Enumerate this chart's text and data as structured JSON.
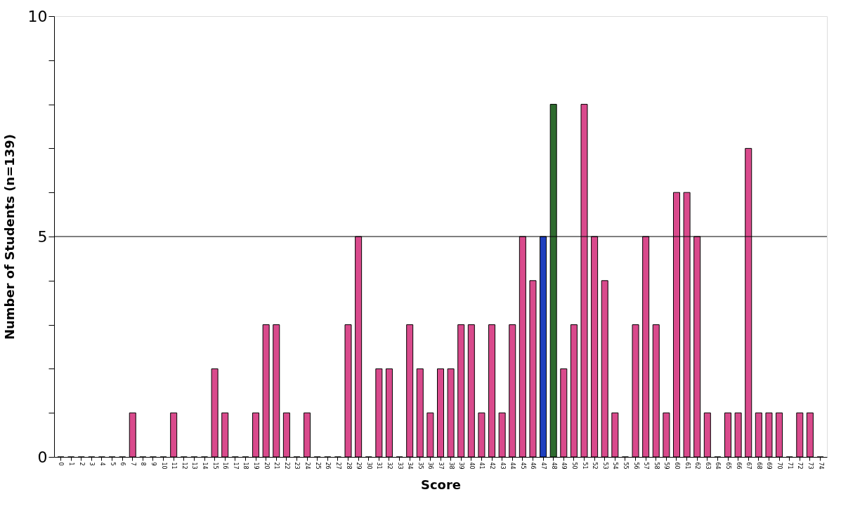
{
  "chart_data": {
    "type": "bar",
    "xlabel": "Score",
    "ylabel": "Number of Students (n=139)",
    "categories": [
      "0",
      "1",
      "2",
      "3",
      "4",
      "5",
      "6",
      "7",
      "8",
      "9",
      "10",
      "11",
      "12",
      "13",
      "14",
      "15",
      "16",
      "17",
      "18",
      "19",
      "20",
      "21",
      "22",
      "23",
      "24",
      "25",
      "26",
      "27",
      "28",
      "29",
      "30",
      "31",
      "32",
      "33",
      "34",
      "35",
      "36",
      "37",
      "38",
      "39",
      "40",
      "41",
      "42",
      "43",
      "44",
      "45",
      "46",
      "47",
      "48",
      "49",
      "50",
      "51",
      "52",
      "53",
      "54",
      "55",
      "56",
      "57",
      "58",
      "59",
      "60",
      "61",
      "62",
      "63",
      "64",
      "65",
      "66",
      "67",
      "68",
      "69",
      "70",
      "71",
      "72",
      "73",
      "74"
    ],
    "values": [
      0,
      0,
      0,
      0,
      0,
      0,
      0,
      1,
      0,
      0,
      0,
      1,
      0,
      0,
      0,
      2,
      1,
      0,
      0,
      1,
      3,
      3,
      1,
      0,
      1,
      0,
      0,
      0,
      3,
      5,
      0,
      2,
      2,
      0,
      3,
      2,
      1,
      2,
      2,
      3,
      3,
      1,
      3,
      1,
      3,
      5,
      4,
      5,
      8,
      2,
      3,
      8,
      5,
      4,
      1,
      0,
      3,
      5,
      3,
      1,
      6,
      6,
      5,
      1,
      0,
      1,
      1,
      7,
      1,
      1,
      1,
      0,
      1,
      1,
      0
    ],
    "colors": [
      "#d94a8c",
      "#d94a8c",
      "#d94a8c",
      "#d94a8c",
      "#d94a8c",
      "#d94a8c",
      "#d94a8c",
      "#d94a8c",
      "#d94a8c",
      "#d94a8c",
      "#d94a8c",
      "#d94a8c",
      "#d94a8c",
      "#d94a8c",
      "#d94a8c",
      "#d94a8c",
      "#d94a8c",
      "#d94a8c",
      "#d94a8c",
      "#d94a8c",
      "#d94a8c",
      "#d94a8c",
      "#d94a8c",
      "#d94a8c",
      "#d94a8c",
      "#d94a8c",
      "#d94a8c",
      "#d94a8c",
      "#d94a8c",
      "#d94a8c",
      "#d94a8c",
      "#d94a8c",
      "#d94a8c",
      "#d94a8c",
      "#d94a8c",
      "#d94a8c",
      "#d94a8c",
      "#d94a8c",
      "#d94a8c",
      "#d94a8c",
      "#d94a8c",
      "#d94a8c",
      "#d94a8c",
      "#d94a8c",
      "#d94a8c",
      "#d94a8c",
      "#d94a8c",
      "#1f3fbf",
      "#2e6b2e",
      "#d94a8c",
      "#d94a8c",
      "#d94a8c",
      "#d94a8c",
      "#d94a8c",
      "#d94a8c",
      "#d94a8c",
      "#d94a8c",
      "#d94a8c",
      "#d94a8c",
      "#d94a8c",
      "#d94a8c",
      "#d94a8c",
      "#d94a8c",
      "#d94a8c",
      "#d94a8c",
      "#d94a8c",
      "#d94a8c",
      "#d94a8c",
      "#d94a8c",
      "#d94a8c",
      "#d94a8c",
      "#d94a8c",
      "#d94a8c",
      "#d94a8c",
      "#d94a8c"
    ],
    "ylim": [
      0,
      10
    ],
    "yticks": [
      0,
      {
        "value": 1,
        "label": null
      },
      {
        "value": 2,
        "label": null
      },
      {
        "value": 3,
        "label": null
      },
      {
        "value": 4,
        "label": null
      },
      5,
      {
        "value": 6,
        "label": null
      },
      {
        "value": 7,
        "label": null
      },
      {
        "value": 8,
        "label": null
      },
      {
        "value": 9,
        "label": null
      },
      10
    ],
    "ref_lines": [
      {
        "axis": "y",
        "value": 5,
        "color": "#000000"
      }
    ]
  }
}
